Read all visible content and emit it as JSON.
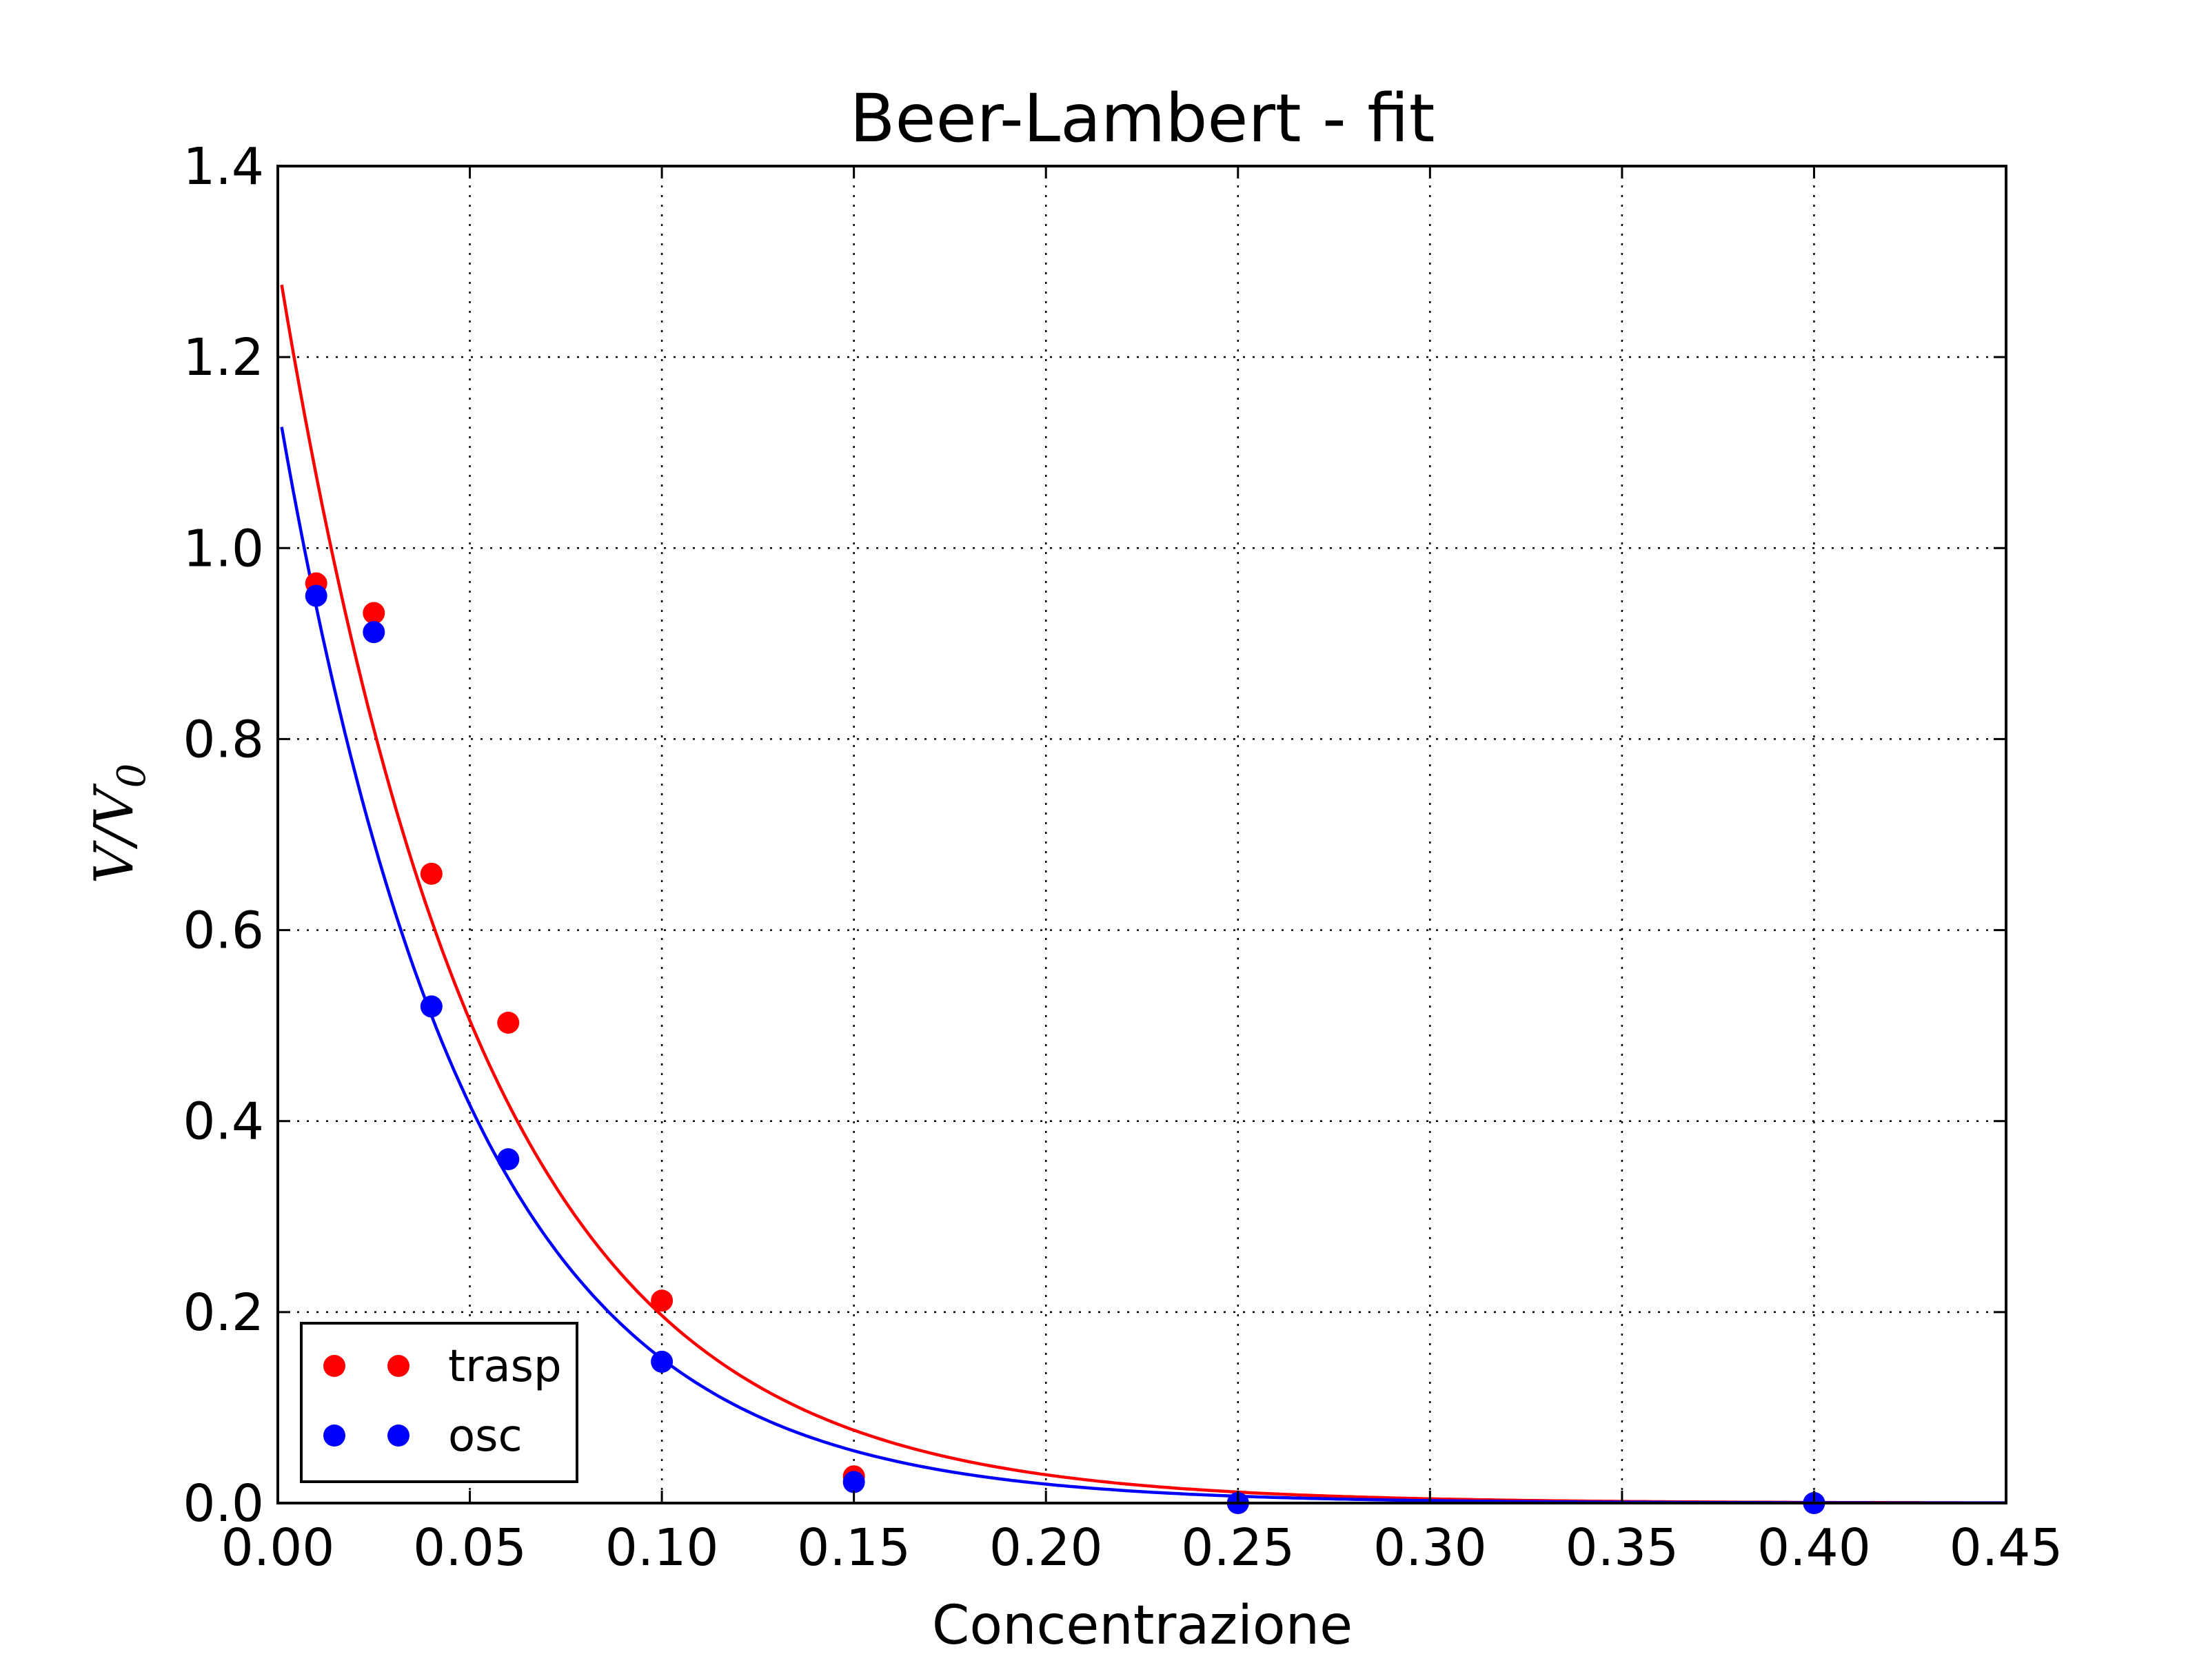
{
  "chart_data": {
    "type": "scatter",
    "title": "Beer-Lambert - fit",
    "xlabel": "Concentrazione",
    "ylabel": {
      "base": "V/V",
      "subscript": "0"
    },
    "xlim": [
      0.0,
      0.45
    ],
    "ylim": [
      0.0,
      1.4
    ],
    "xticks": [
      "0.00",
      "0.05",
      "0.10",
      "0.15",
      "0.20",
      "0.25",
      "0.30",
      "0.35",
      "0.40",
      "0.45"
    ],
    "yticks": [
      "0.0",
      "0.2",
      "0.4",
      "0.6",
      "0.8",
      "1.0",
      "1.2",
      "1.4"
    ],
    "grid": true,
    "legend_position": "lower-left",
    "series": [
      {
        "name": "trasp",
        "color": "#ff0000",
        "x": [
          0.01,
          0.025,
          0.04,
          0.06,
          0.1,
          0.15,
          0.25,
          0.4
        ],
        "y": [
          0.963,
          0.932,
          0.659,
          0.503,
          0.212,
          0.028,
          0.0,
          0.0
        ],
        "fit": {
          "type": "exponential",
          "amplitude": 1.3,
          "rate": 18.9,
          "x_start": 0.001,
          "x_end": 0.45
        }
      },
      {
        "name": "osc",
        "color": "#0000ff",
        "x": [
          0.01,
          0.025,
          0.04,
          0.06,
          0.1,
          0.15,
          0.25,
          0.4
        ],
        "y": [
          0.95,
          0.912,
          0.52,
          0.36,
          0.148,
          0.022,
          0.0,
          0.0
        ],
        "fit": {
          "type": "exponential",
          "amplitude": 1.15,
          "rate": 20.3,
          "x_start": 0.001,
          "x_end": 0.45
        }
      }
    ]
  }
}
